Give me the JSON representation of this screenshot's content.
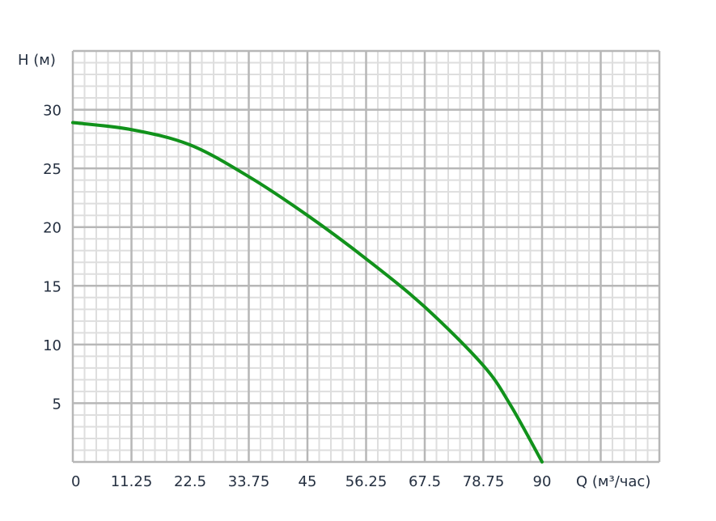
{
  "chart_data": {
    "type": "line",
    "title": "",
    "xlabel": "Q (м³/час)",
    "ylabel": "H (м)",
    "xlim": [
      0,
      112.5
    ],
    "ylim": [
      0,
      35
    ],
    "x_ticks": [
      "0",
      "11.25",
      "22.5",
      "33.75",
      "45",
      "56.25",
      "67.5",
      "78.75",
      "90"
    ],
    "y_ticks": [
      "5",
      "10",
      "15",
      "20",
      "25",
      "30"
    ],
    "grid": true,
    "minor_subdivisions": 5,
    "series": [
      {
        "color": "#11921b",
        "x": [
          0,
          11.25,
          22.5,
          33.75,
          45,
          56.25,
          67.5,
          78.75,
          84,
          90
        ],
        "y": [
          28.9,
          28.3,
          27.0,
          24.3,
          21.0,
          17.3,
          13.2,
          8.2,
          4.8,
          0
        ]
      }
    ],
    "colors": {
      "major_grid": "#b7b7b7",
      "minor_grid": "#dedede",
      "text": "#253041"
    }
  }
}
